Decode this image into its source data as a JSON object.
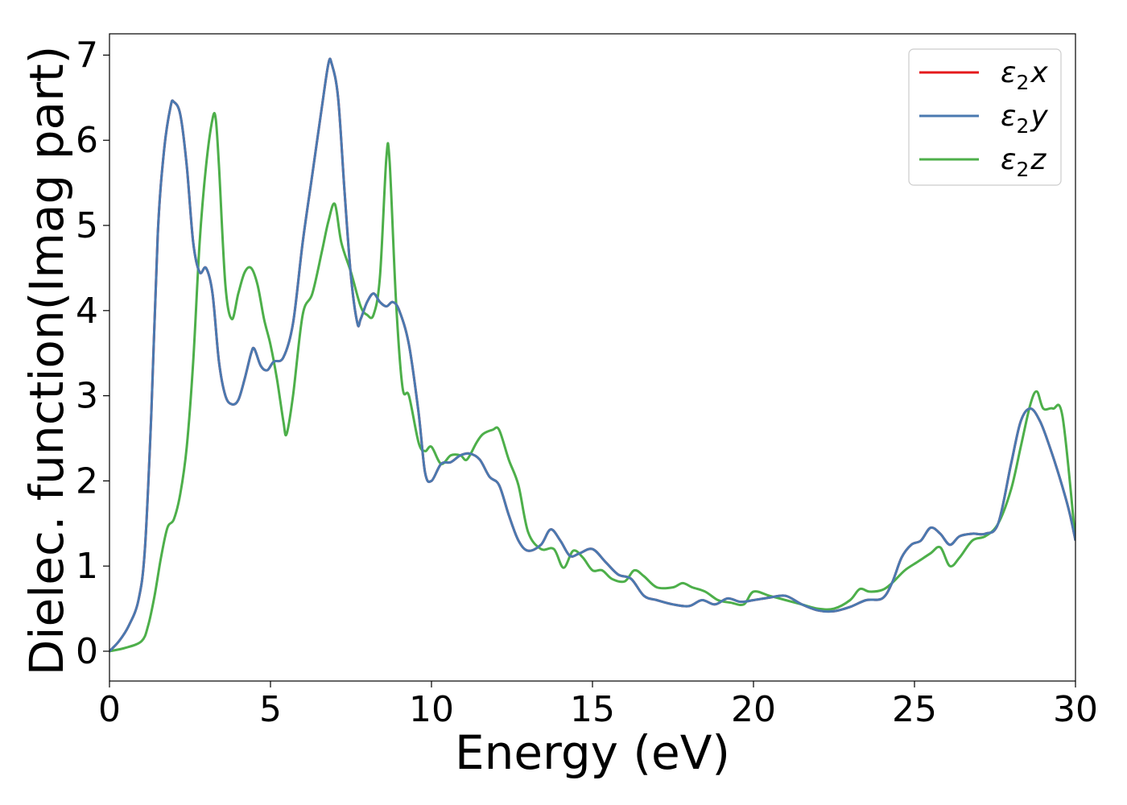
{
  "chart_data": {
    "type": "line",
    "xlabel": "Energy (eV)",
    "ylabel": "Dielec. function(Imag part)",
    "xlim": [
      0,
      30
    ],
    "ylim": [
      -0.35,
      7.25
    ],
    "xticks": [
      "0",
      "5",
      "10",
      "15",
      "20",
      "25",
      "30"
    ],
    "yticks": [
      "0",
      "1",
      "2",
      "3",
      "4",
      "5",
      "6",
      "7"
    ],
    "grid": false,
    "legend_position": "top-right",
    "series": [
      {
        "name": "ε2x",
        "legend_base": "ε",
        "legend_sub": "2",
        "legend_var": "x",
        "color": "#e41a1c",
        "x": [
          0,
          0.3,
          0.6,
          0.9,
          1.1,
          1.3,
          1.5,
          1.7,
          1.9,
          2.0,
          2.2,
          2.4,
          2.6,
          2.8,
          3.0,
          3.2,
          3.4,
          3.6,
          3.8,
          4.0,
          4.2,
          4.4,
          4.5,
          4.7,
          4.9,
          5.1,
          5.4,
          5.7,
          6.0,
          6.3,
          6.6,
          6.8,
          6.9,
          7.1,
          7.3,
          7.5,
          7.7,
          7.8,
          8.0,
          8.2,
          8.4,
          8.6,
          8.8,
          9.0,
          9.3,
          9.6,
          9.8,
          10.0,
          10.3,
          10.6,
          10.9,
          11.2,
          11.5,
          11.8,
          12.1,
          12.4,
          12.7,
          13.0,
          13.4,
          13.7,
          14.0,
          14.3,
          14.6,
          15.0,
          15.4,
          15.8,
          16.2,
          16.6,
          17.0,
          17.5,
          18.0,
          18.4,
          18.8,
          19.2,
          19.6,
          20.0,
          20.5,
          21.0,
          21.5,
          22.0,
          22.5,
          23.0,
          23.5,
          24.0,
          24.3,
          24.6,
          24.9,
          25.2,
          25.5,
          25.8,
          26.1,
          26.4,
          26.8,
          27.2,
          27.6,
          28.0,
          28.3,
          28.6,
          28.9,
          29.2,
          29.5,
          29.8,
          30.0
        ],
        "values": [
          0.0,
          0.12,
          0.3,
          0.6,
          1.2,
          2.8,
          4.9,
          5.9,
          6.4,
          6.45,
          6.3,
          5.7,
          4.8,
          4.45,
          4.5,
          4.2,
          3.4,
          3.0,
          2.9,
          2.95,
          3.2,
          3.5,
          3.55,
          3.35,
          3.3,
          3.4,
          3.45,
          3.85,
          4.8,
          5.6,
          6.4,
          6.9,
          6.9,
          6.5,
          5.4,
          4.4,
          3.85,
          3.9,
          4.1,
          4.2,
          4.1,
          4.05,
          4.1,
          4.0,
          3.6,
          2.8,
          2.1,
          2.0,
          2.2,
          2.22,
          2.3,
          2.32,
          2.25,
          2.05,
          1.95,
          1.6,
          1.3,
          1.18,
          1.25,
          1.43,
          1.3,
          1.12,
          1.15,
          1.2,
          1.05,
          0.9,
          0.85,
          0.65,
          0.6,
          0.55,
          0.53,
          0.6,
          0.55,
          0.62,
          0.58,
          0.6,
          0.63,
          0.65,
          0.55,
          0.48,
          0.47,
          0.52,
          0.6,
          0.62,
          0.8,
          1.1,
          1.25,
          1.3,
          1.45,
          1.38,
          1.25,
          1.35,
          1.38,
          1.38,
          1.5,
          2.2,
          2.7,
          2.85,
          2.7,
          2.4,
          2.05,
          1.65,
          1.3
        ]
      },
      {
        "name": "ε2y",
        "legend_base": "ε",
        "legend_sub": "2",
        "legend_var": "y",
        "color": "#4a79b0",
        "x": [
          0,
          0.3,
          0.6,
          0.9,
          1.1,
          1.3,
          1.5,
          1.7,
          1.9,
          2.0,
          2.2,
          2.4,
          2.6,
          2.8,
          3.0,
          3.2,
          3.4,
          3.6,
          3.8,
          4.0,
          4.2,
          4.4,
          4.5,
          4.7,
          4.9,
          5.1,
          5.4,
          5.7,
          6.0,
          6.3,
          6.6,
          6.8,
          6.9,
          7.1,
          7.3,
          7.5,
          7.7,
          7.8,
          8.0,
          8.2,
          8.4,
          8.6,
          8.8,
          9.0,
          9.3,
          9.6,
          9.8,
          10.0,
          10.3,
          10.6,
          10.9,
          11.2,
          11.5,
          11.8,
          12.1,
          12.4,
          12.7,
          13.0,
          13.4,
          13.7,
          14.0,
          14.3,
          14.6,
          15.0,
          15.4,
          15.8,
          16.2,
          16.6,
          17.0,
          17.5,
          18.0,
          18.4,
          18.8,
          19.2,
          19.6,
          20.0,
          20.5,
          21.0,
          21.5,
          22.0,
          22.5,
          23.0,
          23.5,
          24.0,
          24.3,
          24.6,
          24.9,
          25.2,
          25.5,
          25.8,
          26.1,
          26.4,
          26.8,
          27.2,
          27.6,
          28.0,
          28.3,
          28.6,
          28.9,
          29.2,
          29.5,
          29.8,
          30.0
        ],
        "values": [
          0.0,
          0.12,
          0.3,
          0.6,
          1.2,
          2.8,
          4.9,
          5.9,
          6.4,
          6.45,
          6.3,
          5.7,
          4.8,
          4.45,
          4.5,
          4.2,
          3.4,
          3.0,
          2.9,
          2.95,
          3.2,
          3.5,
          3.55,
          3.35,
          3.3,
          3.4,
          3.45,
          3.85,
          4.8,
          5.6,
          6.4,
          6.9,
          6.9,
          6.5,
          5.4,
          4.4,
          3.85,
          3.9,
          4.1,
          4.2,
          4.1,
          4.05,
          4.1,
          4.0,
          3.6,
          2.8,
          2.1,
          2.0,
          2.2,
          2.22,
          2.3,
          2.32,
          2.25,
          2.05,
          1.95,
          1.6,
          1.3,
          1.18,
          1.25,
          1.43,
          1.3,
          1.12,
          1.15,
          1.2,
          1.05,
          0.9,
          0.85,
          0.65,
          0.6,
          0.55,
          0.53,
          0.6,
          0.55,
          0.62,
          0.58,
          0.6,
          0.63,
          0.65,
          0.55,
          0.48,
          0.47,
          0.52,
          0.6,
          0.62,
          0.8,
          1.1,
          1.25,
          1.3,
          1.45,
          1.38,
          1.25,
          1.35,
          1.38,
          1.38,
          1.5,
          2.2,
          2.7,
          2.85,
          2.7,
          2.4,
          2.05,
          1.65,
          1.3
        ]
      },
      {
        "name": "ε2z",
        "legend_base": "ε",
        "legend_sub": "2",
        "legend_var": "z",
        "color": "#4daf4a",
        "x": [
          0,
          0.5,
          1.0,
          1.2,
          1.4,
          1.6,
          1.8,
          2.0,
          2.2,
          2.4,
          2.6,
          2.8,
          3.0,
          3.2,
          3.3,
          3.4,
          3.6,
          3.8,
          4.0,
          4.2,
          4.4,
          4.6,
          4.8,
          5.0,
          5.2,
          5.4,
          5.5,
          5.7,
          6.0,
          6.3,
          6.6,
          6.8,
          7.0,
          7.2,
          7.5,
          7.8,
          8.0,
          8.2,
          8.4,
          8.6,
          8.7,
          8.9,
          9.1,
          9.3,
          9.6,
          9.8,
          10.0,
          10.3,
          10.6,
          10.9,
          11.1,
          11.4,
          11.6,
          11.9,
          12.1,
          12.4,
          12.7,
          13.0,
          13.4,
          13.8,
          14.1,
          14.4,
          14.7,
          15.0,
          15.3,
          15.6,
          16.0,
          16.3,
          16.6,
          17.0,
          17.5,
          17.8,
          18.1,
          18.5,
          18.9,
          19.3,
          19.7,
          20.0,
          20.5,
          21.0,
          21.5,
          22.0,
          22.5,
          23.0,
          23.3,
          23.6,
          24.0,
          24.3,
          24.7,
          25.1,
          25.5,
          25.8,
          26.1,
          26.4,
          26.8,
          27.2,
          27.6,
          28.0,
          28.3,
          28.6,
          28.8,
          29.0,
          29.3,
          29.6,
          30.0
        ],
        "values": [
          0.0,
          0.04,
          0.12,
          0.3,
          0.65,
          1.1,
          1.45,
          1.55,
          1.85,
          2.4,
          3.4,
          4.8,
          5.7,
          6.25,
          6.25,
          5.7,
          4.3,
          3.9,
          4.2,
          4.45,
          4.5,
          4.3,
          3.9,
          3.6,
          3.2,
          2.7,
          2.55,
          3.0,
          3.95,
          4.2,
          4.7,
          5.05,
          5.25,
          4.8,
          4.45,
          4.05,
          3.95,
          3.95,
          4.4,
          5.8,
          5.75,
          4.1,
          3.1,
          3.0,
          2.45,
          2.35,
          2.4,
          2.2,
          2.3,
          2.3,
          2.25,
          2.45,
          2.55,
          2.6,
          2.6,
          2.25,
          1.95,
          1.4,
          1.2,
          1.2,
          0.98,
          1.18,
          1.1,
          0.95,
          0.95,
          0.85,
          0.82,
          0.95,
          0.88,
          0.75,
          0.75,
          0.8,
          0.75,
          0.7,
          0.6,
          0.57,
          0.55,
          0.7,
          0.65,
          0.6,
          0.55,
          0.5,
          0.5,
          0.6,
          0.73,
          0.7,
          0.72,
          0.8,
          0.95,
          1.05,
          1.15,
          1.22,
          1.0,
          1.1,
          1.3,
          1.35,
          1.5,
          1.9,
          2.4,
          2.9,
          3.05,
          2.85,
          2.85,
          2.75,
          1.3
        ]
      }
    ]
  }
}
